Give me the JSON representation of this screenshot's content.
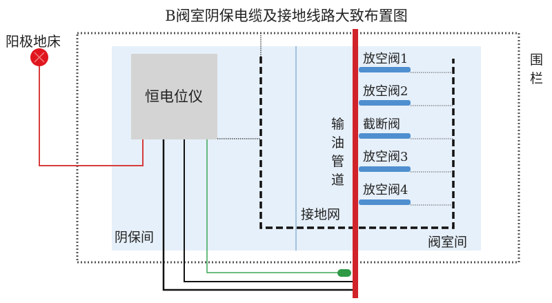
{
  "title": "B阀室阴保电缆及接地线路大致布置图",
  "anode_bed": "阳极地床",
  "potentiostat": "恒电位仪",
  "cp_room": "阴保间",
  "grounding_grid": "接地网",
  "valve_room": "阀室间",
  "pipeline": [
    "输",
    "油",
    "管",
    "道"
  ],
  "fence": [
    "围",
    "栏"
  ],
  "valves": [
    "放空阀1",
    "放空阀2",
    "截断阀",
    "放空阀3",
    "放空阀4"
  ],
  "colors": {
    "pipe": "#d1232a",
    "valve": "#4f8fcf",
    "area": "#e6f0fa",
    "box": "#d4d4d4",
    "green": "#3aa655"
  }
}
